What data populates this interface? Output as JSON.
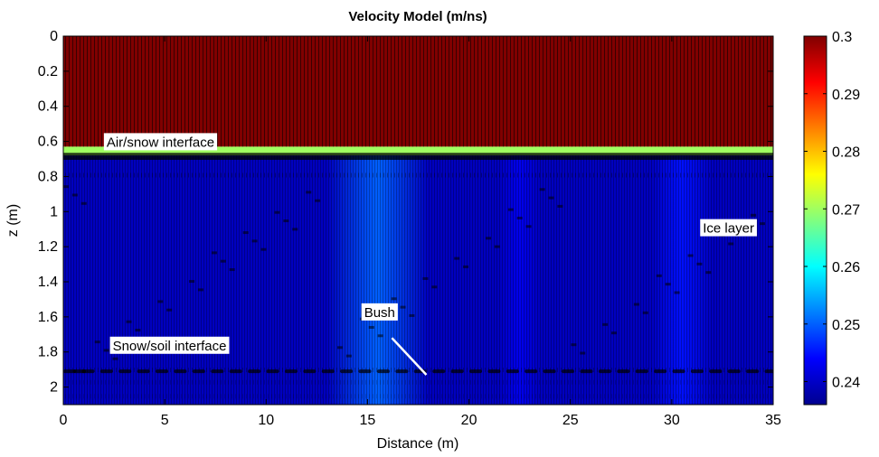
{
  "chart_data": {
    "type": "heatmap",
    "title": "Velocity Model (m/ns)",
    "xlabel": "Distance (m)",
    "ylabel": "z (m)",
    "xlim": [
      0,
      35
    ],
    "ylim": [
      2.1,
      0
    ],
    "x_ticks": [
      0,
      5,
      10,
      15,
      20,
      25,
      30,
      35
    ],
    "y_ticks": [
      0,
      0.2,
      0.4,
      0.6,
      0.8,
      1,
      1.2,
      1.4,
      1.6,
      1.8,
      2
    ],
    "x_tick_labels": [
      "0",
      "5",
      "10",
      "15",
      "20",
      "25",
      "30",
      "35"
    ],
    "y_tick_labels": [
      "0",
      "0.2",
      "0.4",
      "0.6",
      "0.8",
      "1",
      "1.2",
      "1.4",
      "1.6",
      "1.8",
      "2"
    ],
    "colorbar": {
      "colormap": "jet",
      "range": [
        0.236,
        0.3
      ],
      "ticks": [
        0.24,
        0.25,
        0.26,
        0.27,
        0.28,
        0.29,
        0.3
      ],
      "tick_labels": [
        "0.24",
        "0.25",
        "0.26",
        "0.27",
        "0.28",
        "0.29",
        "0.3"
      ]
    },
    "layers": [
      {
        "z_top": 0.0,
        "z_bottom": 0.63,
        "velocity": 0.3
      },
      {
        "z_top": 0.63,
        "z_bottom": 0.68,
        "velocity": 0.27
      },
      {
        "z_top": 0.68,
        "z_bottom": 2.1,
        "velocity": 0.24
      }
    ],
    "high_velocity_bands": [
      {
        "x_center": 15.5,
        "width": 5,
        "velocity": 0.25
      },
      {
        "x_center": 30.5,
        "width": 3,
        "velocity": 0.245
      },
      {
        "x_center": 22.5,
        "width": 2,
        "velocity": 0.243
      }
    ],
    "annotations": [
      {
        "text": "Air/snow interface",
        "x": 2,
        "z": 0.63
      },
      {
        "text": "Ice layer",
        "x": 31.4,
        "z": 1.12
      },
      {
        "text": "Bush",
        "x": 14.7,
        "z": 1.6
      },
      {
        "text": "Snow/soil interface",
        "x": 2.3,
        "z": 1.79
      }
    ],
    "bush_pointer": {
      "x1": 16.2,
      "z1": 1.72,
      "x2": 17.9,
      "z2": 1.93
    }
  }
}
